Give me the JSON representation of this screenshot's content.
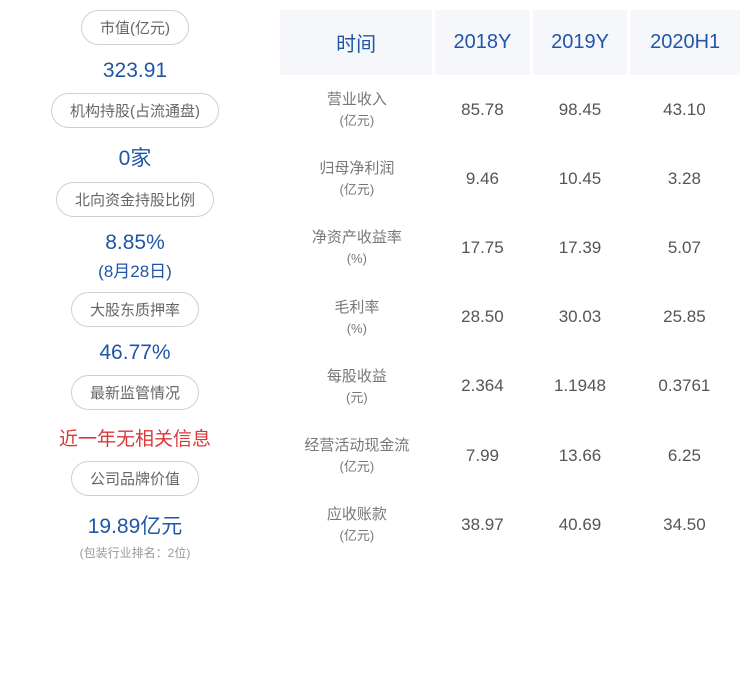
{
  "leftMetrics": [
    {
      "label": "市值(亿元)",
      "value": "323.91",
      "valueColor": "#2056a8"
    },
    {
      "label": "机构持股(占流通盘)",
      "value": "0家",
      "valueColor": "#2056a8"
    },
    {
      "label": "北向资金持股比例",
      "value": "8.85%",
      "subValue": "(8月28日)",
      "valueColor": "#2056a8"
    },
    {
      "label": "大股东质押率",
      "value": "46.77%",
      "valueColor": "#2056a8"
    },
    {
      "label": "最新监管情况",
      "value": "近一年无相关信息",
      "valueColor": "#d93838"
    },
    {
      "label": "公司品牌价值",
      "value": "19.89亿元",
      "footnote": "(包装行业排名：2位)",
      "valueColor": "#2056a8"
    }
  ],
  "table": {
    "headers": [
      "时间",
      "2018Y",
      "2019Y",
      "2020H1"
    ],
    "rows": [
      {
        "labelMain": "营业收入",
        "labelUnit": "(亿元)",
        "values": [
          "85.78",
          "98.45",
          "43.10"
        ]
      },
      {
        "labelMain": "归母净利润",
        "labelUnit": "(亿元)",
        "values": [
          "9.46",
          "10.45",
          "3.28"
        ]
      },
      {
        "labelMain": "净资产收益率",
        "labelUnit": "(%)",
        "values": [
          "17.75",
          "17.39",
          "5.07"
        ]
      },
      {
        "labelMain": "毛利率",
        "labelUnit": "(%)",
        "values": [
          "28.50",
          "30.03",
          "25.85"
        ]
      },
      {
        "labelMain": "每股收益",
        "labelUnit": "(元)",
        "values": [
          "2.364",
          "1.1948",
          "0.3761"
        ]
      },
      {
        "labelMain": "经营活动现金流",
        "labelUnit": "(亿元)",
        "values": [
          "7.99",
          "13.66",
          "6.25"
        ]
      },
      {
        "labelMain": "应收账款",
        "labelUnit": "(亿元)",
        "values": [
          "38.97",
          "40.69",
          "34.50"
        ]
      }
    ]
  },
  "colors": {
    "primaryBlue": "#2056a8",
    "alertRed": "#d93838",
    "labelGray": "#666666",
    "valueGray": "#555555",
    "rowLabelGray": "#777777",
    "footnoteGray": "#999999",
    "headerBg": "#f5f7fa",
    "borderGray": "#d0d0d0"
  }
}
